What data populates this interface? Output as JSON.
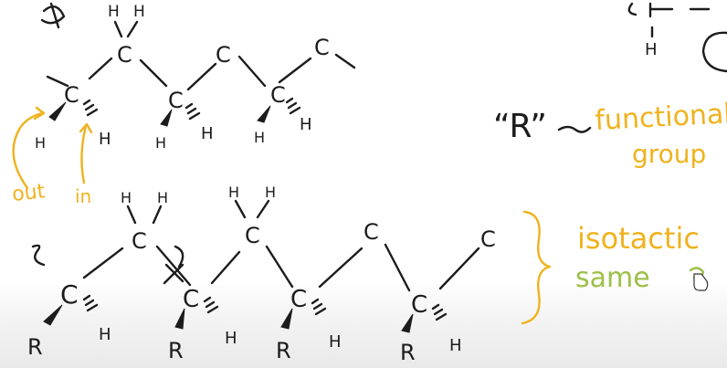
{
  "atoms": {
    "carbon": "C",
    "hydrogen": "H",
    "r_group": "R"
  },
  "labels": {
    "r_quoted": "“R”",
    "dash": "~",
    "functional": "functional",
    "group": "group",
    "out": "out",
    "in": "in",
    "isotactic": "isotactic",
    "same": "same"
  },
  "colors": {
    "ink": "#1c1c1c",
    "orange": "#f0b21e",
    "green": "#9dc04a"
  }
}
